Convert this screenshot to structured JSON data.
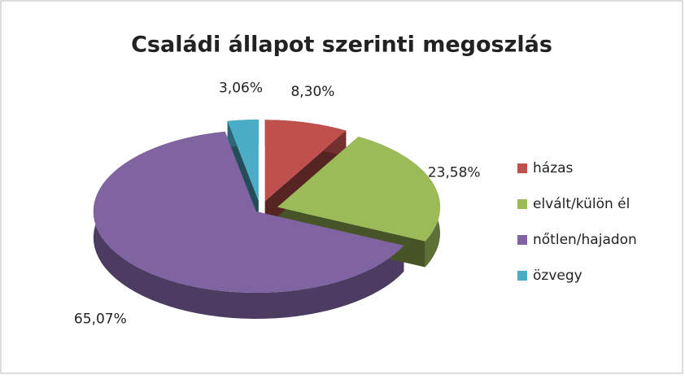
{
  "chart_data": {
    "type": "pie",
    "title": "Családi állapot szerinti megoszlás",
    "categories": [
      "házas",
      "elvált/külön él",
      "nőtlen/hajadon",
      "özvegy"
    ],
    "values": [
      8.3,
      23.58,
      65.07,
      3.06
    ],
    "value_labels": [
      "8,30%",
      "23,58%",
      "65,07%",
      "3,06%"
    ],
    "colors": [
      "#c0504d",
      "#9bbb59",
      "#8064a2",
      "#4bacc6"
    ],
    "legend": "right"
  }
}
